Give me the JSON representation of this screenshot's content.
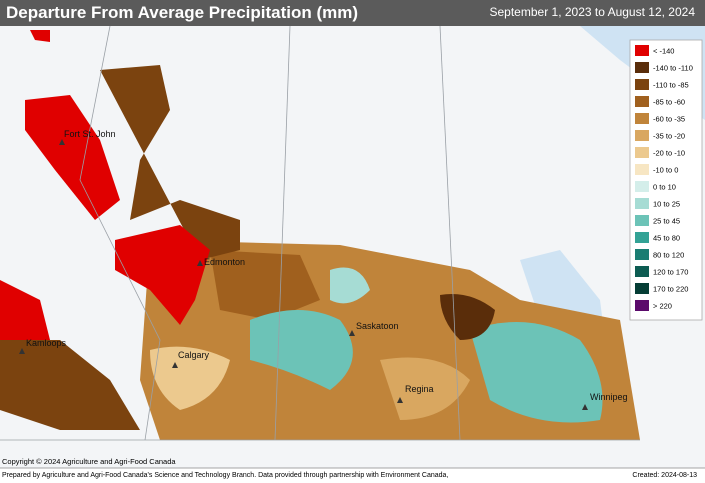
{
  "header": {
    "title": "Departure From Average Precipitation (mm)",
    "date_range": "September 1, 2023 to August 12, 2024"
  },
  "legend": [
    {
      "label": "< -140",
      "color": "#e00000"
    },
    {
      "label": "-140 to -110",
      "color": "#5a2d0a"
    },
    {
      "label": "-110 to -85",
      "color": "#7b430f"
    },
    {
      "label": "-85 to -60",
      "color": "#a0601e"
    },
    {
      "label": "-60 to -35",
      "color": "#c0843a"
    },
    {
      "label": "-35 to -20",
      "color": "#d9a760"
    },
    {
      "label": "-20 to -10",
      "color": "#ecc98e"
    },
    {
      "label": "-10 to 0",
      "color": "#f7e6c3"
    },
    {
      "label": "0 to 10",
      "color": "#d4eeea"
    },
    {
      "label": "10 to 25",
      "color": "#a6dcd4"
    },
    {
      "label": "25 to 45",
      "color": "#6cc3b7"
    },
    {
      "label": "45 to 80",
      "color": "#33a295"
    },
    {
      "label": "80 to 120",
      "color": "#1a7d72"
    },
    {
      "label": "120 to 170",
      "color": "#0d5c52"
    },
    {
      "label": "170 to 220",
      "color": "#053d35"
    },
    {
      "label": "> 220",
      "color": "#5b0a6b"
    }
  ],
  "cities": [
    "Fort St. John",
    "Edmonton",
    "Kamloops",
    "Calgary",
    "Saskatoon",
    "Regina",
    "Winnipeg"
  ],
  "copyright": "Copyright © 2024 Agriculture and Agri-Food Canada",
  "footer": {
    "credit": "Prepared by Agriculture and Agri-Food Canada's Science and Technology Branch. Data provided through partnership with Environment Canada,",
    "created": "Created: 2024-08-13"
  }
}
